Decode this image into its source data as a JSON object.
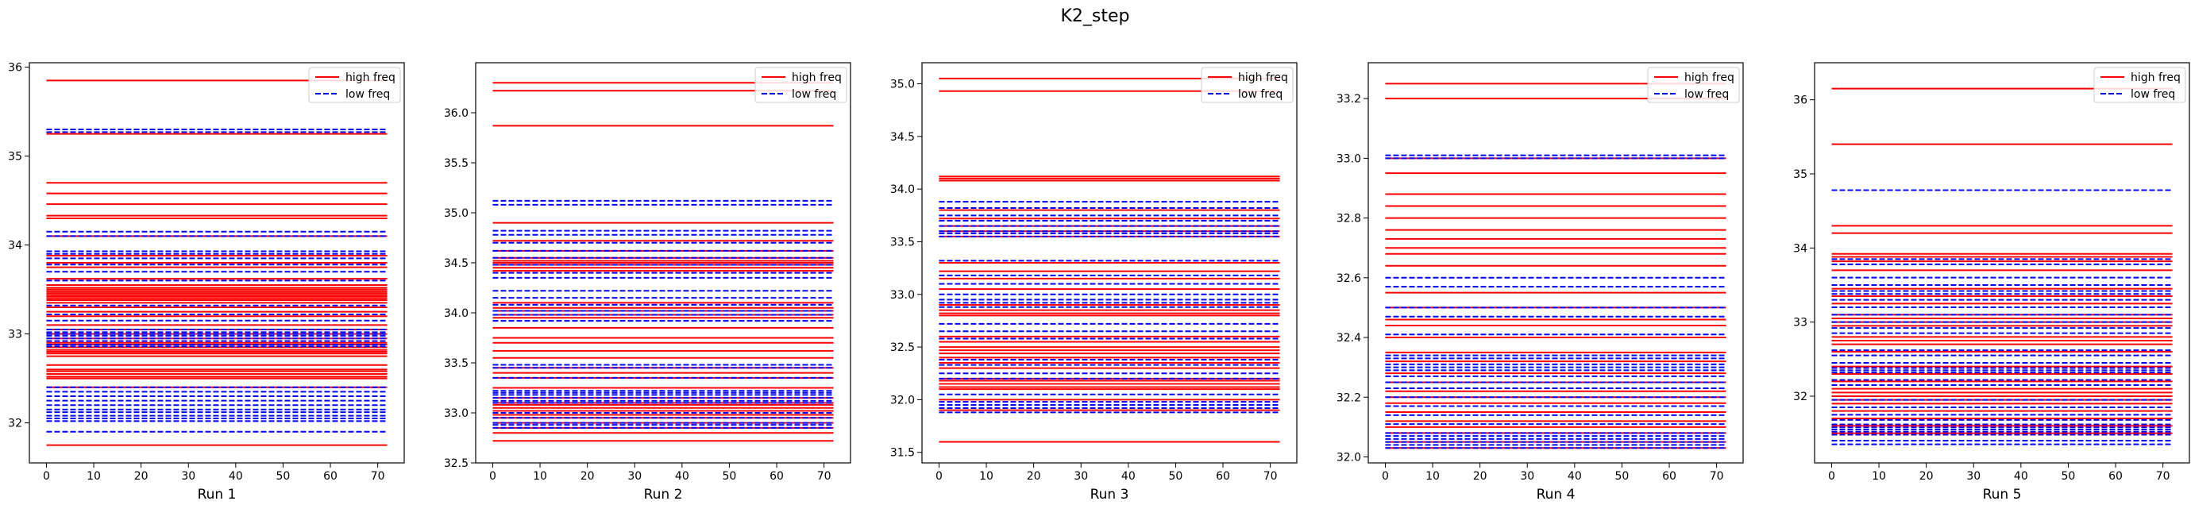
{
  "figure": {
    "title": "K2_step",
    "high_color": "#ff0000",
    "low_color": "#0000ff"
  },
  "chart_data": [
    {
      "type": "line",
      "xlabel": "Run 1",
      "ylabel": "",
      "xlim": [
        -3.6,
        75.6
      ],
      "ylim": [
        31.55,
        36.05
      ],
      "xticks": [
        0,
        10,
        20,
        30,
        40,
        50,
        60,
        70
      ],
      "yticks": [
        32,
        33,
        34,
        35,
        36
      ],
      "x": [
        0,
        72
      ],
      "legend": {
        "position": "top-right",
        "entries": [
          {
            "label": "high freq",
            "style": "solid",
            "color": "#ff0000"
          },
          {
            "label": "low freq",
            "style": "dashed",
            "color": "#0000ff"
          }
        ]
      },
      "series": [
        {
          "name": "high freq",
          "style": "solid",
          "color": "#ff0000",
          "levels": [
            35.85,
            35.25,
            34.7,
            34.58,
            34.46,
            34.33,
            34.3,
            34.1,
            33.88,
            33.8,
            33.75,
            33.62,
            33.55,
            33.52,
            33.5,
            33.48,
            33.46,
            33.44,
            33.42,
            33.4,
            33.38,
            33.35,
            33.3,
            33.25,
            33.2,
            33.1,
            33.05,
            33.0,
            32.95,
            32.9,
            32.88,
            32.85,
            32.82,
            32.8,
            32.78,
            32.75,
            32.65,
            32.6,
            32.58,
            32.55,
            32.52,
            32.5,
            32.4,
            31.75
          ]
        },
        {
          "name": "low freq",
          "style": "dashed",
          "color": "#0000ff",
          "levels": [
            35.3,
            35.27,
            34.15,
            34.1,
            33.93,
            33.9,
            33.85,
            33.78,
            33.7,
            33.6,
            33.32,
            33.22,
            33.15,
            33.05,
            33.02,
            33.0,
            32.98,
            32.95,
            32.92,
            32.88,
            32.86,
            32.4,
            32.35,
            32.3,
            32.25,
            32.2,
            32.15,
            32.12,
            32.08,
            32.05,
            32.02,
            31.9
          ]
        }
      ]
    },
    {
      "type": "line",
      "xlabel": "Run 2",
      "ylabel": "",
      "xlim": [
        -3.6,
        75.6
      ],
      "ylim": [
        32.5,
        36.5
      ],
      "xticks": [
        0,
        10,
        20,
        30,
        40,
        50,
        60,
        70
      ],
      "yticks": [
        32.5,
        33.0,
        33.5,
        34.0,
        34.5,
        35.0,
        35.5,
        36.0
      ],
      "x": [
        0,
        72
      ],
      "legend": {
        "position": "top-right",
        "entries": [
          {
            "label": "high freq",
            "style": "solid",
            "color": "#ff0000"
          },
          {
            "label": "low freq",
            "style": "dashed",
            "color": "#0000ff"
          }
        ]
      },
      "series": [
        {
          "name": "high freq",
          "style": "solid",
          "color": "#ff0000",
          "levels": [
            36.3,
            36.22,
            35.87,
            34.9,
            34.72,
            34.62,
            34.55,
            34.52,
            34.5,
            34.48,
            34.45,
            34.42,
            34.1,
            34.05,
            34.02,
            33.98,
            33.95,
            33.85,
            33.75,
            33.7,
            33.62,
            33.55,
            33.45,
            33.4,
            33.35,
            33.25,
            33.15,
            33.1,
            33.08,
            33.05,
            33.02,
            32.98,
            32.95,
            32.9,
            32.85,
            32.8,
            32.72
          ]
        },
        {
          "name": "low freq",
          "style": "dashed",
          "color": "#0000ff",
          "levels": [
            35.12,
            35.08,
            34.82,
            34.78,
            34.7,
            34.62,
            34.55,
            34.48,
            34.4,
            34.35,
            34.22,
            34.15,
            34.08,
            34.02,
            33.98,
            33.92,
            33.48,
            33.45,
            33.35,
            33.22,
            33.2,
            33.18,
            33.15,
            33.12,
            33.1,
            33.0,
            32.95,
            32.9,
            32.88,
            32.85
          ]
        }
      ]
    },
    {
      "type": "line",
      "xlabel": "Run 3",
      "ylabel": "",
      "xlim": [
        -3.6,
        75.6
      ],
      "ylim": [
        31.4,
        35.2
      ],
      "xticks": [
        0,
        10,
        20,
        30,
        40,
        50,
        60,
        70
      ],
      "yticks": [
        31.5,
        32.0,
        32.5,
        33.0,
        33.5,
        34.0,
        34.5,
        35.0
      ],
      "x": [
        0,
        72
      ],
      "legend": {
        "position": "top-right",
        "entries": [
          {
            "label": "high freq",
            "style": "solid",
            "color": "#ff0000"
          },
          {
            "label": "low freq",
            "style": "dashed",
            "color": "#0000ff"
          }
        ]
      },
      "series": [
        {
          "name": "high freq",
          "style": "solid",
          "color": "#ff0000",
          "levels": [
            35.05,
            34.93,
            34.12,
            34.1,
            34.08,
            33.8,
            33.72,
            33.65,
            33.6,
            33.55,
            33.3,
            33.22,
            33.15,
            33.05,
            32.9,
            32.85,
            32.82,
            32.8,
            32.6,
            32.55,
            32.5,
            32.47,
            32.44,
            32.4,
            32.35,
            32.3,
            32.2,
            32.18,
            32.15,
            32.12,
            32.1,
            32.0,
            31.9,
            31.6
          ]
        },
        {
          "name": "low freq",
          "style": "dashed",
          "color": "#0000ff",
          "levels": [
            33.88,
            33.82,
            33.75,
            33.7,
            33.65,
            33.6,
            33.58,
            33.55,
            33.32,
            33.18,
            33.1,
            33.0,
            32.95,
            32.92,
            32.88,
            32.72,
            32.65,
            32.58,
            32.38,
            32.33,
            32.25,
            32.2,
            32.05,
            31.98,
            31.95,
            31.92,
            31.88
          ]
        }
      ]
    },
    {
      "type": "line",
      "xlabel": "Run 4",
      "ylabel": "",
      "xlim": [
        -3.6,
        75.6
      ],
      "ylim": [
        31.98,
        33.32
      ],
      "xticks": [
        0,
        10,
        20,
        30,
        40,
        50,
        60,
        70
      ],
      "yticks": [
        32.0,
        32.2,
        32.4,
        32.6,
        32.8,
        33.0,
        33.2
      ],
      "x": [
        0,
        72
      ],
      "legend": {
        "position": "top-right",
        "entries": [
          {
            "label": "high freq",
            "style": "solid",
            "color": "#ff0000"
          },
          {
            "label": "low freq",
            "style": "dashed",
            "color": "#0000ff"
          }
        ]
      },
      "series": [
        {
          "name": "high freq",
          "style": "solid",
          "color": "#ff0000",
          "levels": [
            33.25,
            33.2,
            33.0,
            32.95,
            32.88,
            32.84,
            32.8,
            32.76,
            32.73,
            32.7,
            32.68,
            32.64,
            32.55,
            32.5,
            32.46,
            32.44,
            32.4,
            32.35,
            32.32,
            32.28,
            32.25,
            32.22,
            32.2,
            32.18,
            32.15,
            32.12,
            32.1,
            32.08,
            32.05,
            32.03
          ]
        },
        {
          "name": "low freq",
          "style": "dashed",
          "color": "#0000ff",
          "levels": [
            33.01,
            33.0,
            32.6,
            32.57,
            32.5,
            32.47,
            32.41,
            32.34,
            32.33,
            32.31,
            32.3,
            32.29,
            32.27,
            32.25,
            32.23,
            32.2,
            32.17,
            32.14,
            32.11,
            32.08,
            32.07,
            32.06,
            32.05,
            32.04,
            32.03
          ]
        }
      ]
    },
    {
      "type": "line",
      "xlabel": "Run 5",
      "ylabel": "",
      "xlim": [
        -3.6,
        75.6
      ],
      "ylim": [
        31.1,
        36.5
      ],
      "xticks": [
        0,
        10,
        20,
        30,
        40,
        50,
        60,
        70
      ],
      "yticks": [
        32,
        33,
        34,
        35,
        36
      ],
      "x": [
        0,
        72
      ],
      "legend": {
        "position": "top-right",
        "entries": [
          {
            "label": "high freq",
            "style": "solid",
            "color": "#ff0000"
          },
          {
            "label": "low freq",
            "style": "dashed",
            "color": "#0000ff"
          }
        ]
      },
      "series": [
        {
          "name": "high freq",
          "style": "solid",
          "color": "#ff0000",
          "levels": [
            36.15,
            35.4,
            34.3,
            34.2,
            33.92,
            33.88,
            33.82,
            33.7,
            33.45,
            33.35,
            33.25,
            33.1,
            33.05,
            33.0,
            32.95,
            32.8,
            32.75,
            32.7,
            32.6,
            32.4,
            32.3,
            32.2,
            32.1,
            32.05,
            32.0,
            31.95,
            31.9,
            31.8,
            31.7,
            31.6,
            31.5
          ]
        },
        {
          "name": "low freq",
          "style": "dashed",
          "color": "#0000ff",
          "levels": [
            34.78,
            33.85,
            33.78,
            33.6,
            33.5,
            33.42,
            33.38,
            33.3,
            33.2,
            33.1,
            33.0,
            32.92,
            32.85,
            32.62,
            32.55,
            32.45,
            32.38,
            32.35,
            32.32,
            32.22,
            32.15,
            31.95,
            31.85,
            31.75,
            31.68,
            31.62,
            31.58,
            31.55,
            31.52,
            31.48,
            31.4,
            31.35
          ]
        }
      ]
    }
  ]
}
